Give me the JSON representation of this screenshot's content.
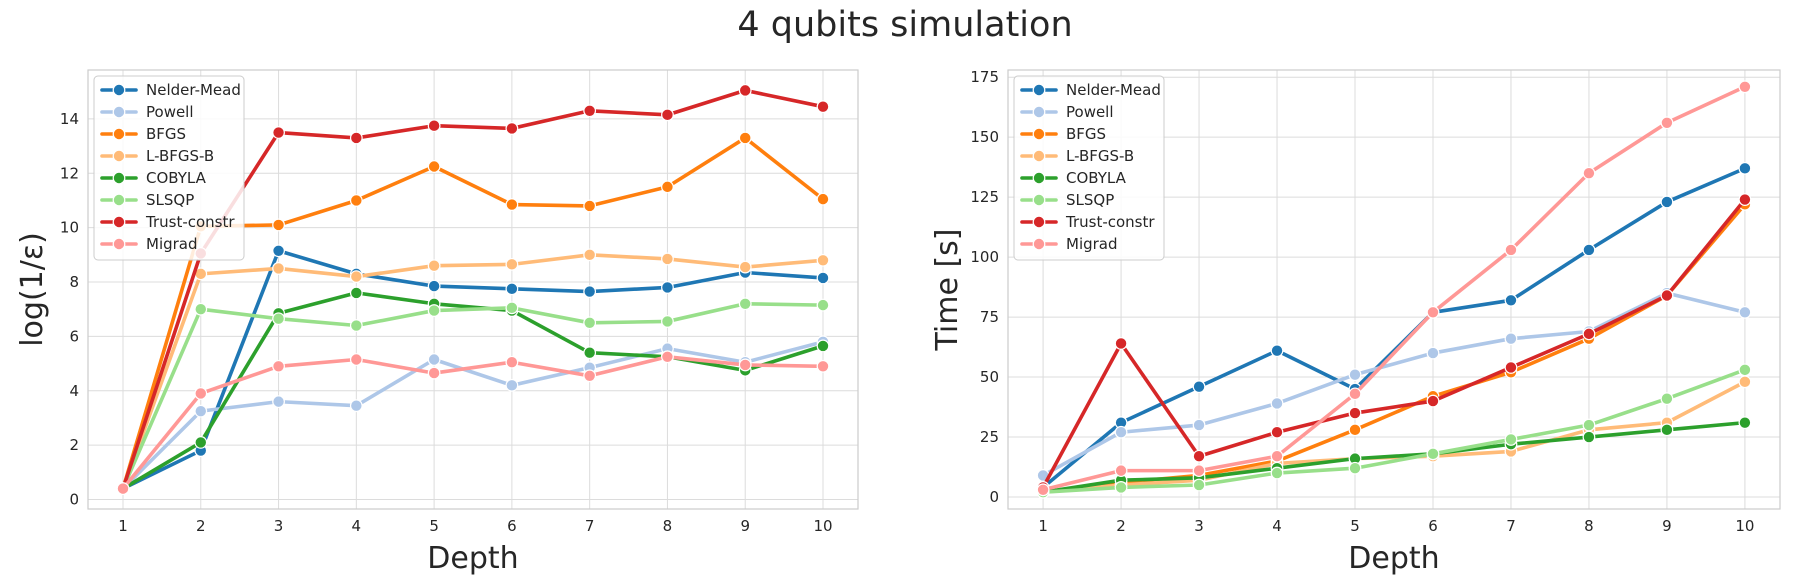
{
  "figure": {
    "title": "4 qubits simulation"
  },
  "chart_data": [
    {
      "type": "line",
      "xlabel": "Depth",
      "ylabel": "log(1/ε)",
      "x": [
        1,
        2,
        3,
        4,
        5,
        6,
        7,
        8,
        9,
        10
      ],
      "xlim": [
        0.55,
        10.45
      ],
      "ylim": [
        -0.35,
        15.8
      ],
      "yticks": [
        0,
        2,
        4,
        6,
        8,
        10,
        12,
        14
      ],
      "grid": true,
      "legend": "upper-left",
      "series": [
        {
          "name": "Nelder-Mead",
          "color": "#1f77b4",
          "values": [
            0.4,
            1.8,
            9.15,
            8.3,
            7.85,
            7.75,
            7.65,
            7.8,
            8.35,
            8.15
          ]
        },
        {
          "name": "Powell",
          "color": "#aec7e8",
          "values": [
            0.4,
            3.25,
            3.6,
            3.45,
            5.15,
            4.2,
            4.85,
            5.55,
            5.05,
            5.8
          ]
        },
        {
          "name": "BFGS",
          "color": "#ff7f0e",
          "values": [
            0.4,
            10.05,
            10.1,
            11.0,
            12.25,
            10.85,
            10.8,
            11.5,
            13.3,
            11.05
          ]
        },
        {
          "name": "L-BFGS-B",
          "color": "#ffbb78",
          "values": [
            0.4,
            8.3,
            8.5,
            8.2,
            8.6,
            8.65,
            9.0,
            8.85,
            8.55,
            8.8
          ]
        },
        {
          "name": "COBYLA",
          "color": "#2ca02c",
          "values": [
            0.4,
            2.1,
            6.85,
            7.6,
            7.2,
            6.95,
            5.4,
            5.25,
            4.75,
            5.65
          ]
        },
        {
          "name": "SLSQP",
          "color": "#98df8a",
          "values": [
            0.4,
            7.0,
            6.65,
            6.4,
            6.95,
            7.05,
            6.5,
            6.55,
            7.2,
            7.15
          ]
        },
        {
          "name": "Trust-constr",
          "color": "#d62728",
          "values": [
            0.4,
            9.05,
            13.5,
            13.3,
            13.75,
            13.65,
            14.3,
            14.15,
            15.05,
            14.45
          ]
        },
        {
          "name": "Migrad",
          "color": "#ff9896",
          "values": [
            0.4,
            3.9,
            4.9,
            5.15,
            4.65,
            5.05,
            4.55,
            5.25,
            4.95,
            4.9
          ]
        }
      ]
    },
    {
      "type": "line",
      "xlabel": "Depth",
      "ylabel": "Time [s]",
      "x": [
        1,
        2,
        3,
        4,
        5,
        6,
        7,
        8,
        9,
        10
      ],
      "xlim": [
        0.55,
        10.45
      ],
      "ylim": [
        -5,
        178
      ],
      "yticks": [
        0,
        25,
        50,
        75,
        100,
        125,
        150,
        175
      ],
      "grid": true,
      "legend": "upper-left",
      "series": [
        {
          "name": "Nelder-Mead",
          "color": "#1f77b4",
          "values": [
            4,
            31,
            46,
            61,
            45,
            77,
            82,
            103,
            123,
            137
          ]
        },
        {
          "name": "Powell",
          "color": "#aec7e8",
          "values": [
            9,
            27,
            30,
            39,
            51,
            60,
            66,
            69,
            85,
            77
          ]
        },
        {
          "name": "BFGS",
          "color": "#ff7f0e",
          "values": [
            2,
            6,
            9,
            15,
            28,
            42,
            52,
            66,
            84,
            122
          ]
        },
        {
          "name": "L-BFGS-B",
          "color": "#ffbb78",
          "values": [
            2,
            5,
            7,
            14,
            16,
            17,
            19,
            28,
            31,
            48
          ]
        },
        {
          "name": "COBYLA",
          "color": "#2ca02c",
          "values": [
            2,
            7,
            8,
            12,
            16,
            18,
            22,
            25,
            28,
            31
          ]
        },
        {
          "name": "SLSQP",
          "color": "#98df8a",
          "values": [
            2,
            4,
            5,
            10,
            12,
            18,
            24,
            30,
            41,
            53
          ]
        },
        {
          "name": "Trust-constr",
          "color": "#d62728",
          "values": [
            4,
            64,
            17,
            27,
            35,
            40,
            54,
            68,
            84,
            124
          ]
        },
        {
          "name": "Migrad",
          "color": "#ff9896",
          "values": [
            3,
            11,
            11,
            17,
            43,
            77,
            103,
            135,
            156,
            171
          ]
        }
      ]
    }
  ]
}
